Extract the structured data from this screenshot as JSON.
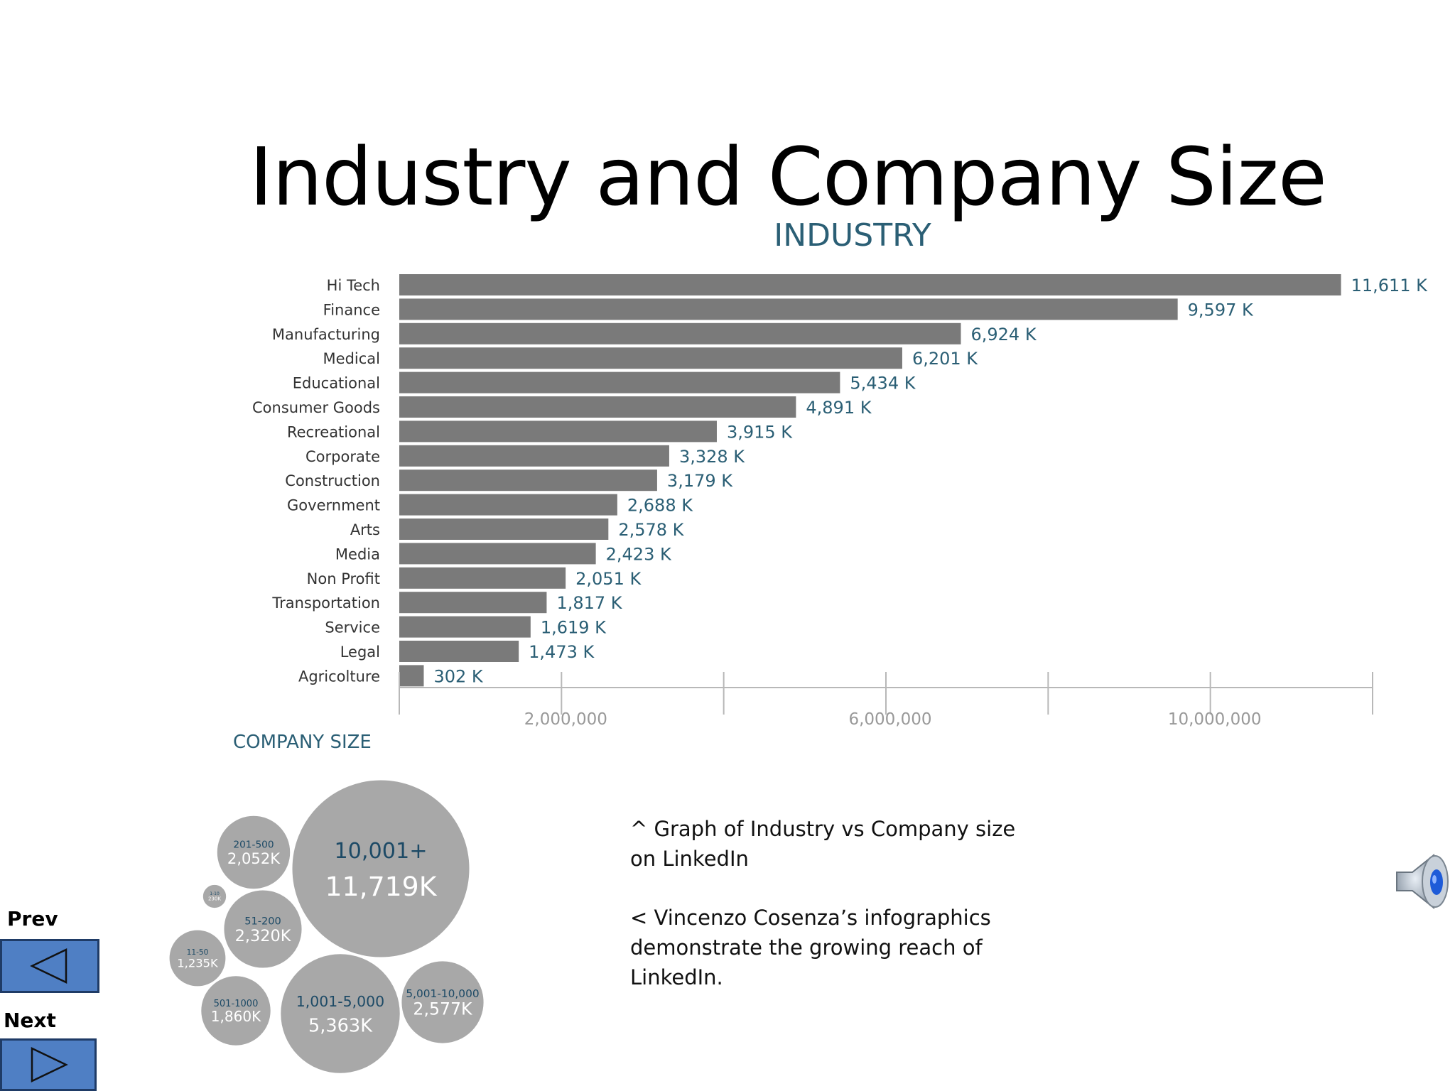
{
  "slide": {
    "title": "Industry and Company Size",
    "caption_1": "^ Graph of Industry vs Company size on LinkedIn",
    "caption_2": "< Vincenzo Cosenza’s infographics demonstrate the growing reach of LinkedIn.",
    "prev_label": "Prev",
    "next_label": "Next",
    "speaker_icon": "speaker-icon"
  },
  "colors": {
    "bar": "#7a7a7a",
    "value_label": "#2b5f75",
    "bubble": "#a8a8a8",
    "bubble_label": "#1d4a66",
    "nav_button": "#4f7fc4"
  },
  "chart_data": [
    {
      "type": "bar",
      "orientation": "horizontal",
      "title": "INDUSTRY",
      "categories": [
        "Hi Tech",
        "Finance",
        "Manufacturing",
        "Medical",
        "Educational",
        "Consumer Goods",
        "Recreational",
        "Corporate",
        "Construction",
        "Government",
        "Arts",
        "Media",
        "Non Profit",
        "Transportation",
        "Service",
        "Legal",
        "Agricolture"
      ],
      "values": [
        11611,
        9597,
        6924,
        6201,
        5434,
        4891,
        3915,
        3328,
        3179,
        2688,
        2578,
        2423,
        2051,
        1817,
        1619,
        1473,
        302
      ],
      "value_labels": [
        "11,611 K",
        "9,597 K",
        "6,924 K",
        "6,201 K",
        "5,434 K",
        "4,891 K",
        "3,915 K",
        "3,328 K",
        "3,179 K",
        "2,688 K",
        "2,578 K",
        "2,423 K",
        "2,051 K",
        "1,817 K",
        "1,619 K",
        "1,473 K",
        "302 K"
      ],
      "unit": "K",
      "xlim": [
        0,
        12000
      ],
      "x_ticks": [
        2000,
        6000,
        10000
      ],
      "x_tick_labels": [
        "2,000,000",
        "6,000,000",
        "10,000,000"
      ],
      "grid": false
    },
    {
      "type": "bubble",
      "title": "COMPANY SIZE",
      "bubbles": [
        {
          "category": "10,001+",
          "value": 11719,
          "label": "11,719K"
        },
        {
          "category": "1,001-5,000",
          "value": 5363,
          "label": "5,363K"
        },
        {
          "category": "5,001-10,000",
          "value": 2577,
          "label": "2,577K"
        },
        {
          "category": "51-200",
          "value": 2320,
          "label": "2,320K"
        },
        {
          "category": "201-500",
          "value": 2052,
          "label": "2,052K"
        },
        {
          "category": "501-1000",
          "value": 1860,
          "label": "1,860K"
        },
        {
          "category": "11-50",
          "value": 1235,
          "label": "1,235K"
        },
        {
          "category": "1-10",
          "value": 230,
          "label": "230K"
        }
      ]
    }
  ]
}
